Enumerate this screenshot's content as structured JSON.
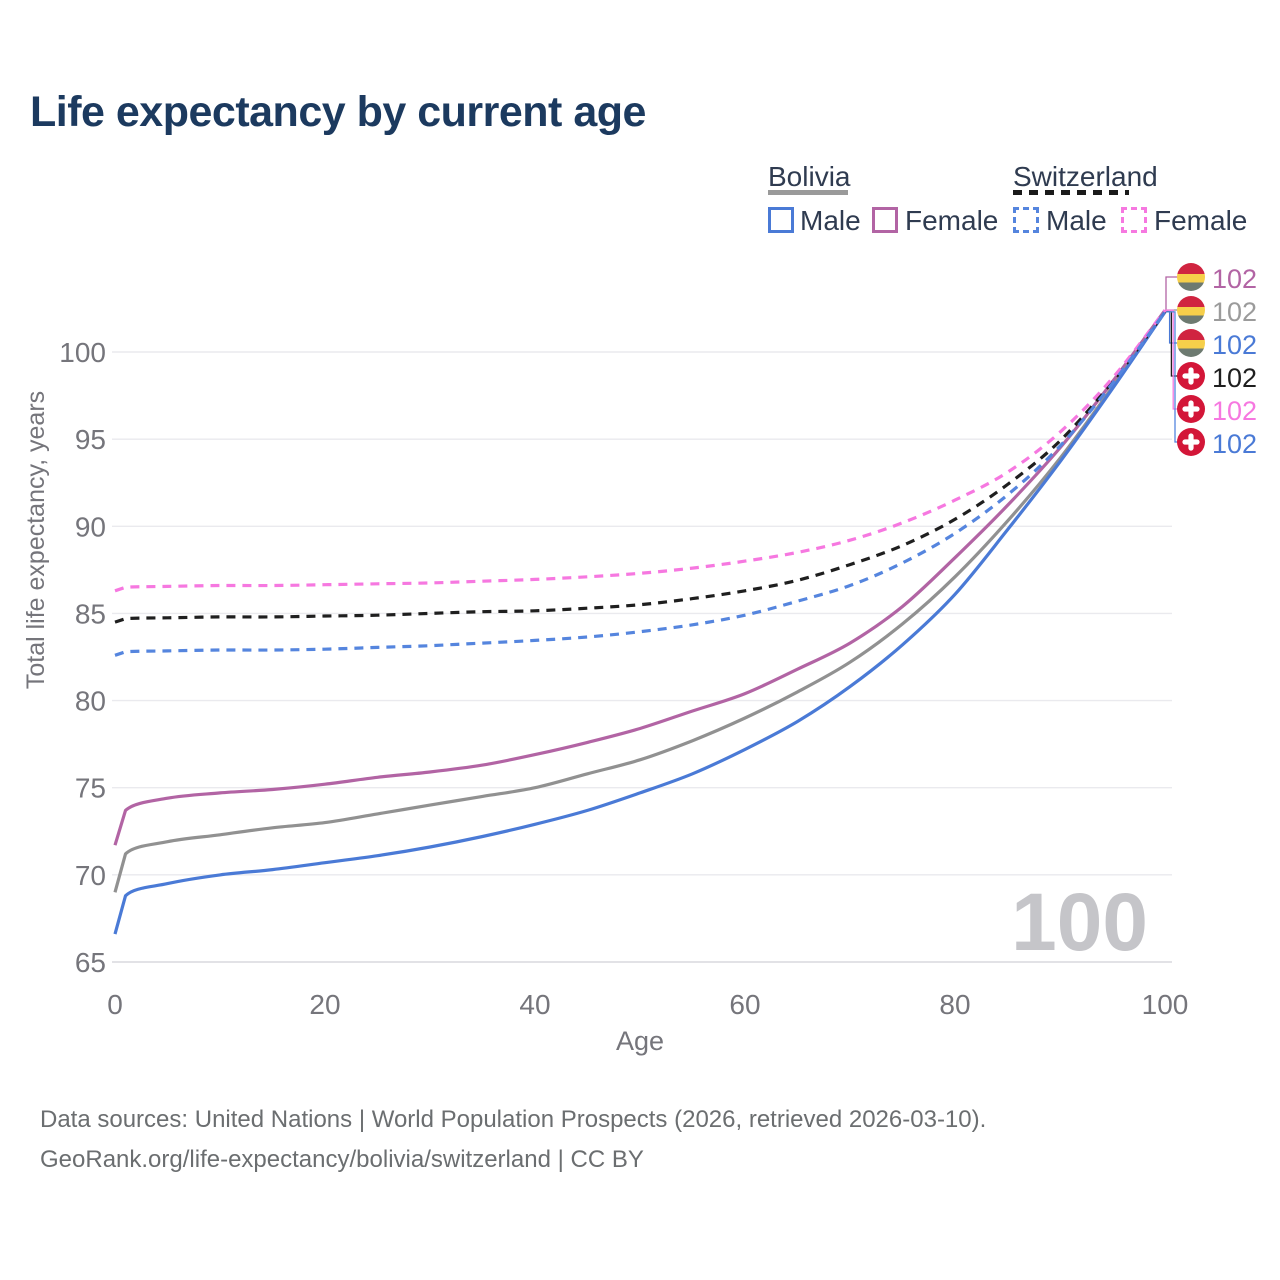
{
  "title": "Life expectancy by current age",
  "legend": {
    "groups": [
      {
        "label": "Bolivia",
        "style": "solid",
        "items": [
          {
            "label": "Male",
            "color": "#4a7ad6"
          },
          {
            "label": "Female",
            "color": "#b264a4"
          }
        ]
      },
      {
        "label": "Switzerland",
        "style": "dashed",
        "items": [
          {
            "label": "Male",
            "color": "#5585de"
          },
          {
            "label": "Female",
            "color": "#f678e0"
          }
        ]
      }
    ]
  },
  "chart_data": {
    "type": "line",
    "title": "Life expectancy by current age",
    "xlabel": "Age",
    "ylabel": "Total life expectancy, years",
    "x_ticks": [
      0,
      20,
      40,
      60,
      80,
      100
    ],
    "y_ticks": [
      65,
      70,
      75,
      80,
      85,
      90,
      95,
      100
    ],
    "xlim": [
      0,
      100
    ],
    "ylim": [
      63.5,
      103.5
    ],
    "grid": "horizontal",
    "x": [
      0,
      1,
      5,
      10,
      15,
      20,
      25,
      30,
      35,
      40,
      45,
      50,
      55,
      60,
      65,
      70,
      75,
      80,
      85,
      90,
      95,
      100
    ],
    "series": [
      {
        "name": "Bolivia Female",
        "color": "#b264a4",
        "dash": false,
        "label_row": 0,
        "values": [
          71.7,
          73.7,
          74.4,
          74.7,
          74.9,
          75.2,
          75.6,
          75.9,
          76.3,
          76.9,
          77.6,
          78.4,
          79.4,
          80.4,
          81.8,
          83.3,
          85.4,
          88.2,
          91.2,
          94.5,
          98.3,
          102.4
        ]
      },
      {
        "name": "Bolivia Both sexes",
        "color": "#919191",
        "dash": false,
        "label_row": 1,
        "values": [
          69.0,
          71.2,
          71.9,
          72.3,
          72.7,
          73.0,
          73.5,
          74.0,
          74.5,
          75.0,
          75.8,
          76.6,
          77.7,
          79.0,
          80.5,
          82.2,
          84.4,
          87.1,
          90.3,
          93.9,
          98.0,
          102.3
        ]
      },
      {
        "name": "Bolivia Male",
        "color": "#4a7ad6",
        "dash": false,
        "label_row": 2,
        "values": [
          66.6,
          68.8,
          69.5,
          70.0,
          70.3,
          70.7,
          71.1,
          71.6,
          72.2,
          72.9,
          73.7,
          74.7,
          75.8,
          77.2,
          78.8,
          80.8,
          83.2,
          86.1,
          89.8,
          93.7,
          97.9,
          102.3
        ]
      },
      {
        "name": "Switzerland Both sexes",
        "color": "#1f1f1f",
        "dash": true,
        "label_row": 3,
        "values": [
          84.5,
          84.7,
          84.75,
          84.8,
          84.8,
          84.85,
          84.9,
          85.0,
          85.1,
          85.15,
          85.3,
          85.5,
          85.85,
          86.3,
          86.9,
          87.8,
          88.9,
          90.4,
          92.4,
          94.9,
          98.3,
          102.3
        ]
      },
      {
        "name": "Switzerland Female",
        "color": "#f678e0",
        "dash": true,
        "label_row": 4,
        "values": [
          86.3,
          86.5,
          86.55,
          86.6,
          86.6,
          86.65,
          86.7,
          86.75,
          86.85,
          86.95,
          87.1,
          87.3,
          87.6,
          88.0,
          88.5,
          89.2,
          90.2,
          91.5,
          93.1,
          95.4,
          98.5,
          102.4
        ]
      },
      {
        "name": "Switzerland Male",
        "color": "#5585de",
        "dash": true,
        "label_row": 5,
        "values": [
          82.6,
          82.8,
          82.85,
          82.9,
          82.9,
          82.95,
          83.05,
          83.15,
          83.3,
          83.45,
          83.65,
          83.95,
          84.35,
          84.9,
          85.7,
          86.6,
          87.9,
          89.6,
          91.8,
          94.6,
          98.2,
          102.3
        ]
      }
    ],
    "end_value_label": "102",
    "hover_age_indicator": "100"
  },
  "end_labels": [
    {
      "flag": "bolivia",
      "value": "102",
      "color": "#b264a4"
    },
    {
      "flag": "bolivia",
      "value": "102",
      "color": "#9b9b9b"
    },
    {
      "flag": "bolivia",
      "value": "102",
      "color": "#4a7ad6"
    },
    {
      "flag": "switzerland",
      "value": "102",
      "color": "#1f1f1f"
    },
    {
      "flag": "switzerland",
      "value": "102",
      "color": "#f678e0"
    },
    {
      "flag": "switzerland",
      "value": "102",
      "color": "#4a7ad6"
    }
  ],
  "watermark": "100",
  "footer": {
    "line1": "Data sources: United Nations | World Population Prospects (2026, retrieved 2026-03-10).",
    "line2": "GeoRank.org/life-expectancy/bolivia/switzerland | CC BY"
  }
}
